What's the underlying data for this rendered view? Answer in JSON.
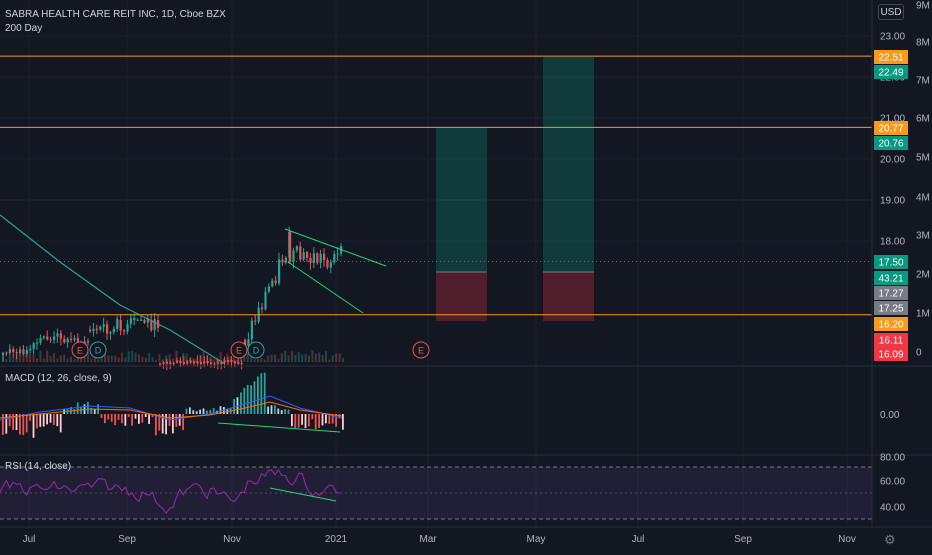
{
  "header": {
    "symbol_line": "SABRA HEALTH CARE REIT INC, 1D, Cboe BZX",
    "ma_label": "200 Day"
  },
  "currency_button": "USD",
  "settings_icon": "gear-icon",
  "time_axis": [
    "Jul",
    "Sep",
    "Nov",
    "2021",
    "Mar",
    "May",
    "Jul",
    "Sep",
    "Nov"
  ],
  "price_axis": [
    "23.00",
    "22.00",
    "21.00",
    "20.00",
    "19.00",
    "18.00"
  ],
  "volume_axis": [
    "9M",
    "8M",
    "7M",
    "6M",
    "5M",
    "4M",
    "3M",
    "2M",
    "1M",
    "0"
  ],
  "price_labels": [
    {
      "text": "22.51",
      "color": "#f89a1c"
    },
    {
      "text": "22.49",
      "color": "#089981"
    },
    {
      "text": "20.77",
      "color": "#f89a1c"
    },
    {
      "text": "20.76",
      "color": "#089981"
    },
    {
      "text": "17.50",
      "color": "#089981"
    },
    {
      "text": "43.21",
      "color": "#089981"
    },
    {
      "text": "17.27",
      "color": "#787b86"
    },
    {
      "text": "17.25",
      "color": "#787b86"
    },
    {
      "text": "16.20",
      "color": "#f89a1c"
    },
    {
      "text": "16.11",
      "color": "#f23645"
    },
    {
      "text": "16.09",
      "color": "#f23645"
    }
  ],
  "event_markers": [
    "E",
    "D",
    "E",
    "D",
    "E"
  ],
  "macd": {
    "label": "MACD (12, 26, close, 9)",
    "axis": [
      "0.00"
    ]
  },
  "rsi": {
    "label": "RSI (14, close)",
    "axis": [
      "80.00",
      "60.00",
      "40.00"
    ]
  },
  "colors": {
    "background": "#131722",
    "up": "#26a69a",
    "down": "#ef5350",
    "level_line": "#f89a1c",
    "trendline": "#2bd37c",
    "rsi_line": "#9c27b0"
  }
}
